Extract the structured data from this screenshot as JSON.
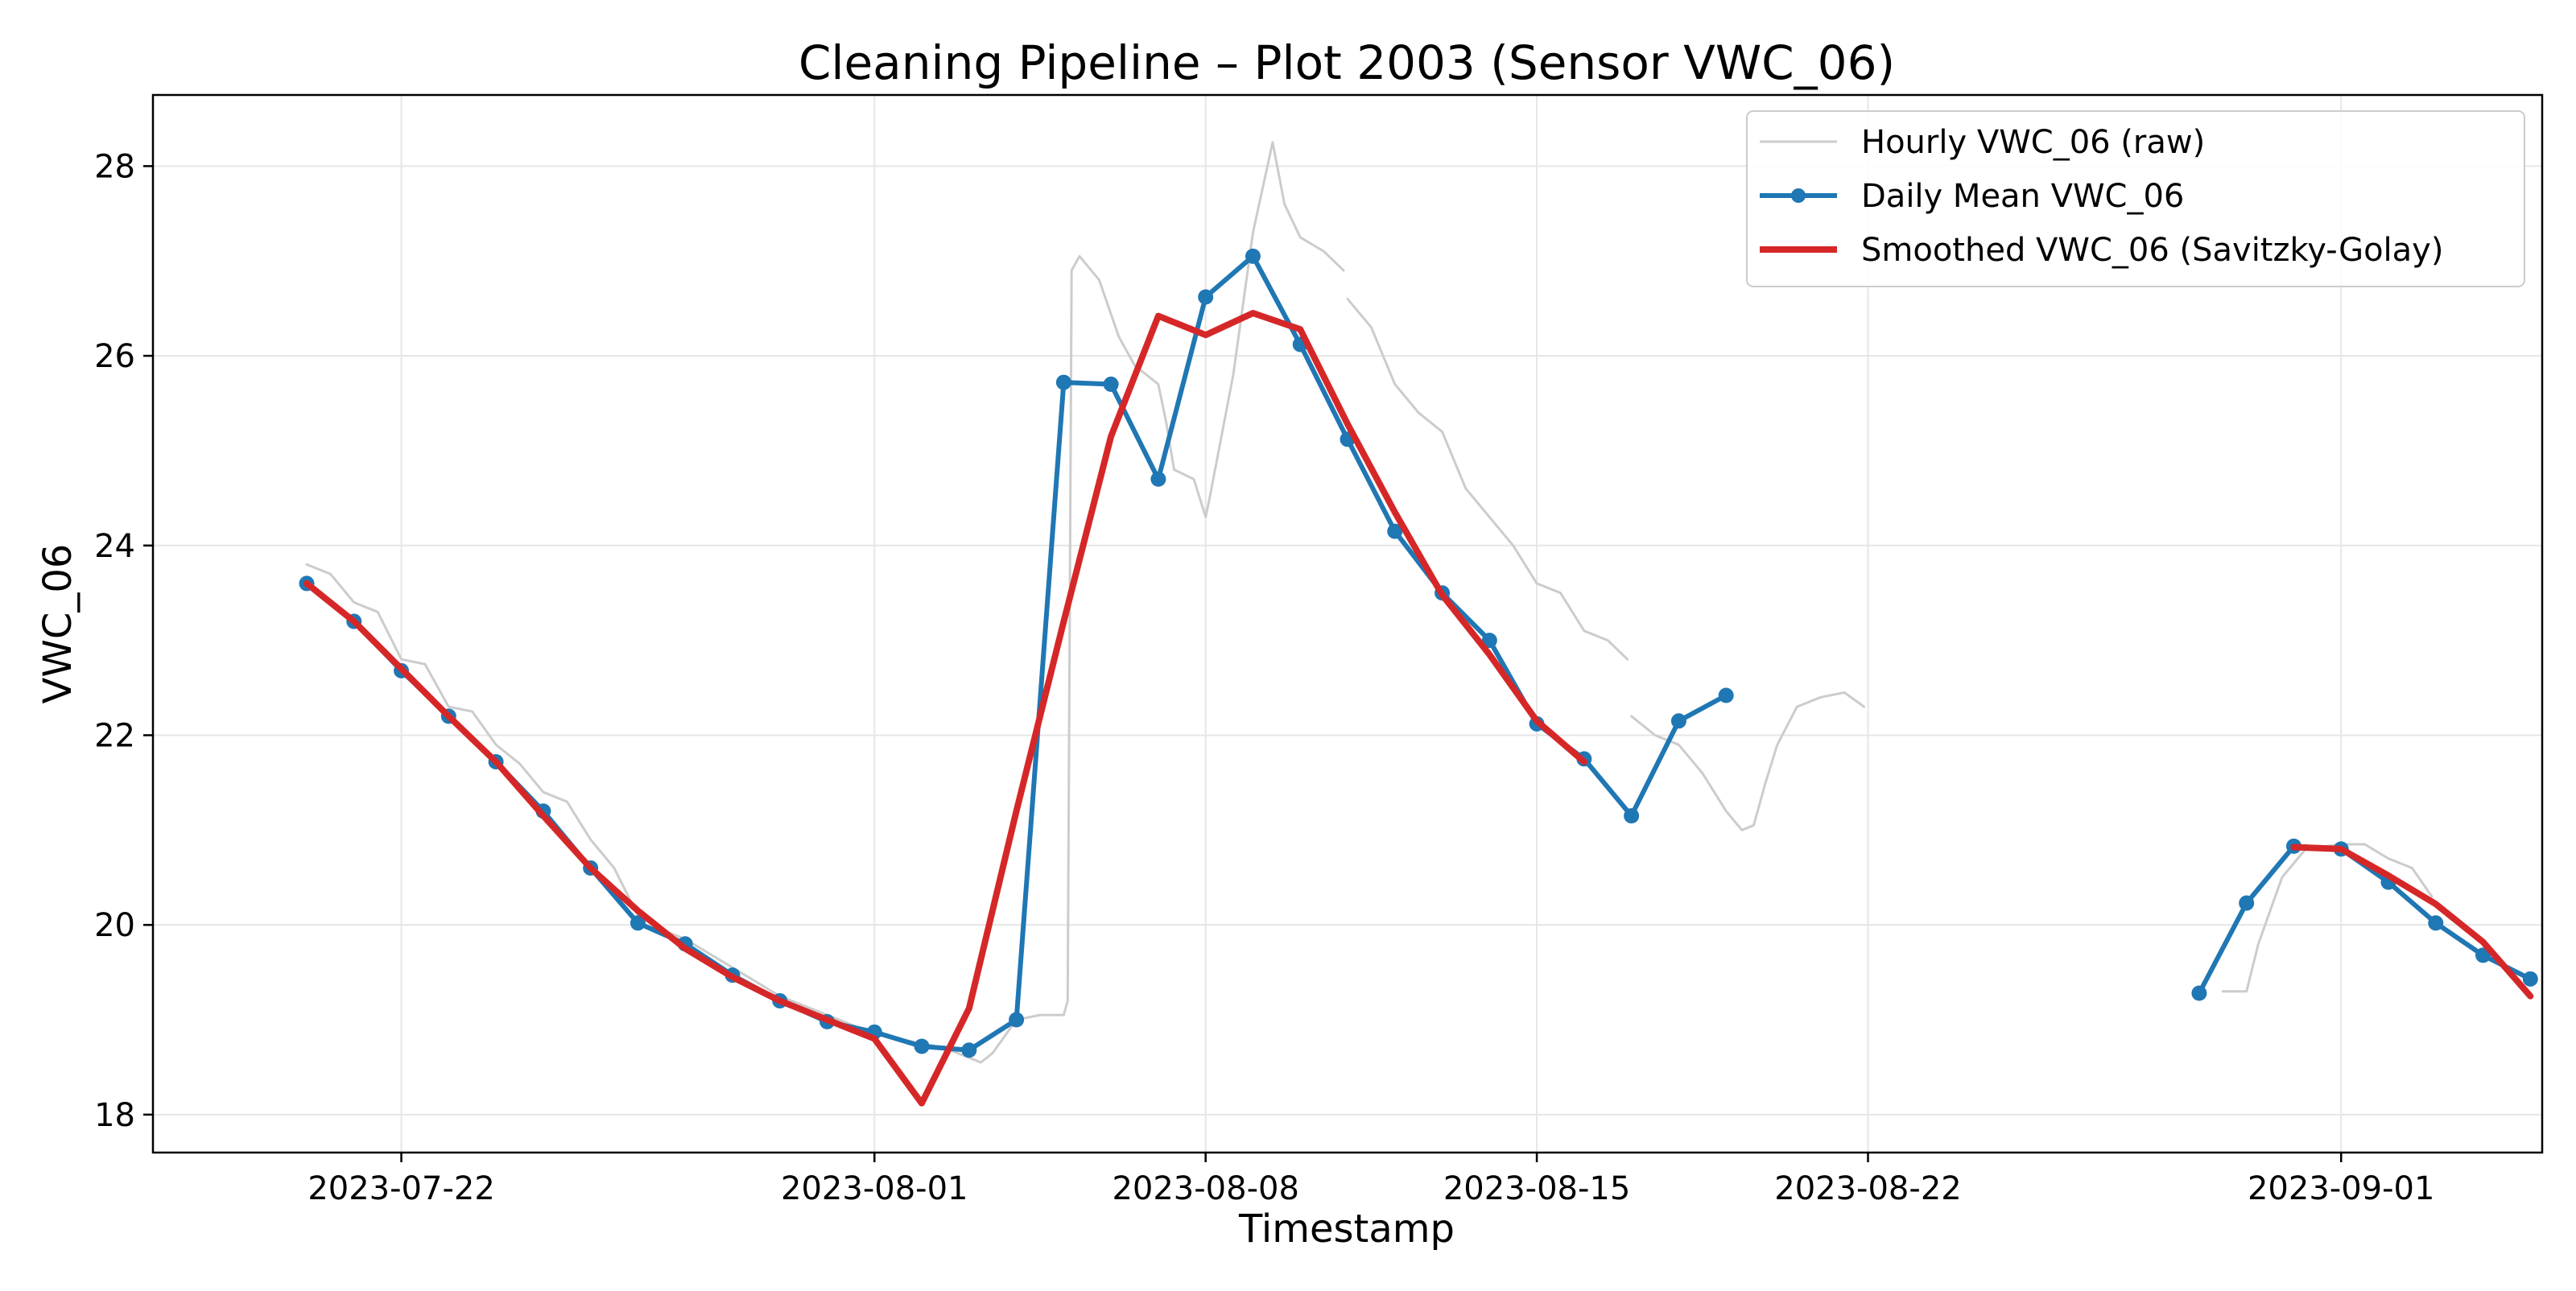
{
  "chart_data": {
    "type": "line",
    "title": "Cleaning Pipeline – Plot 2003 (Sensor VWC_06)",
    "xlabel": "Timestamp",
    "ylabel": "VWC_06",
    "xlim": [
      "2023-07-16T18:00",
      "2023-09-05T06:00"
    ],
    "ylim": [
      17.6,
      28.75
    ],
    "x_ticks": [
      "2023-07-22",
      "2023-08-01",
      "2023-08-08",
      "2023-08-15",
      "2023-08-22",
      "2023-09-01"
    ],
    "y_ticks": [
      18,
      20,
      22,
      24,
      26,
      28
    ],
    "grid": true,
    "legend_position": "top-right",
    "colors": {
      "raw": "#cccccc",
      "daily": "#1f77b4",
      "smoothed": "#d62728"
    },
    "series": [
      {
        "name": "Hourly VWC_06 (raw)",
        "style": "line",
        "segments": [
          [
            [
              "2023-07-20T00:00",
              23.8
            ],
            [
              "2023-07-20T12:00",
              23.7
            ],
            [
              "2023-07-21T00:00",
              23.4
            ],
            [
              "2023-07-21T12:00",
              23.3
            ],
            [
              "2023-07-22T00:00",
              22.8
            ],
            [
              "2023-07-22T12:00",
              22.75
            ],
            [
              "2023-07-23T00:00",
              22.3
            ],
            [
              "2023-07-23T12:00",
              22.25
            ],
            [
              "2023-07-24T00:00",
              21.9
            ],
            [
              "2023-07-24T12:00",
              21.7
            ],
            [
              "2023-07-25T00:00",
              21.4
            ],
            [
              "2023-07-25T12:00",
              21.3
            ],
            [
              "2023-07-26T00:00",
              20.9
            ],
            [
              "2023-07-26T12:00",
              20.6
            ],
            [
              "2023-07-27T00:00",
              20.1
            ],
            [
              "2023-07-27T12:00",
              19.95
            ],
            [
              "2023-07-28T00:00",
              19.85
            ],
            [
              "2023-07-28T12:00",
              19.7
            ],
            [
              "2023-07-29T00:00",
              19.55
            ],
            [
              "2023-07-29T12:00",
              19.4
            ],
            [
              "2023-07-30T00:00",
              19.25
            ],
            [
              "2023-07-30T12:00",
              19.15
            ],
            [
              "2023-07-31T00:00",
              19.05
            ],
            [
              "2023-07-31T12:00",
              18.95
            ],
            [
              "2023-08-01T00:00",
              18.85
            ],
            [
              "2023-08-01T12:00",
              18.8
            ],
            [
              "2023-08-02T00:00",
              18.75
            ],
            [
              "2023-08-02T12:00",
              18.7
            ],
            [
              "2023-08-03T00:00",
              18.6
            ],
            [
              "2023-08-03T06:00",
              18.55
            ],
            [
              "2023-08-03T12:00",
              18.65
            ],
            [
              "2023-08-04T00:00",
              19.0
            ],
            [
              "2023-08-04T12:00",
              19.05
            ],
            [
              "2023-08-05T00:00",
              19.05
            ],
            [
              "2023-08-05T02:00",
              19.2
            ],
            [
              "2023-08-05T04:00",
              26.9
            ],
            [
              "2023-08-05T08:00",
              27.05
            ],
            [
              "2023-08-05T18:00",
              26.8
            ],
            [
              "2023-08-06T04:00",
              26.2
            ],
            [
              "2023-08-06T12:00",
              25.9
            ],
            [
              "2023-08-07T00:00",
              25.7
            ],
            [
              "2023-08-07T04:00",
              25.3
            ],
            [
              "2023-08-07T08:00",
              24.8
            ],
            [
              "2023-08-07T18:00",
              24.7
            ],
            [
              "2023-08-08T00:00",
              24.3
            ],
            [
              "2023-08-08T02:00",
              24.5
            ],
            [
              "2023-08-08T14:00",
              25.8
            ],
            [
              "2023-08-09T00:00",
              27.3
            ],
            [
              "2023-08-09T10:00",
              28.25
            ],
            [
              "2023-08-09T16:00",
              27.6
            ],
            [
              "2023-08-10T00:00",
              27.25
            ],
            [
              "2023-08-10T12:00",
              27.1
            ],
            [
              "2023-08-10T22:00",
              26.9
            ]
          ],
          [
            [
              "2023-08-11T00:00",
              26.6
            ],
            [
              "2023-08-11T12:00",
              26.3
            ],
            [
              "2023-08-12T00:00",
              25.7
            ],
            [
              "2023-08-12T12:00",
              25.4
            ],
            [
              "2023-08-13T00:00",
              25.2
            ],
            [
              "2023-08-13T12:00",
              24.6
            ],
            [
              "2023-08-14T00:00",
              24.3
            ],
            [
              "2023-08-14T12:00",
              24.0
            ],
            [
              "2023-08-15T00:00",
              23.6
            ],
            [
              "2023-08-15T12:00",
              23.5
            ],
            [
              "2023-08-16T00:00",
              23.1
            ],
            [
              "2023-08-16T12:00",
              23.0
            ],
            [
              "2023-08-16T22:00",
              22.8
            ]
          ],
          [
            [
              "2023-08-17T00:00",
              22.2
            ],
            [
              "2023-08-17T12:00",
              22.0
            ],
            [
              "2023-08-18T00:00",
              21.9
            ],
            [
              "2023-08-18T12:00",
              21.6
            ],
            [
              "2023-08-19T00:00",
              21.2
            ],
            [
              "2023-08-19T08:00",
              21.0
            ],
            [
              "2023-08-19T14:00",
              21.05
            ],
            [
              "2023-08-19T20:00",
              21.5
            ],
            [
              "2023-08-20T02:00",
              21.9
            ],
            [
              "2023-08-20T12:00",
              22.3
            ],
            [
              "2023-08-21T00:00",
              22.4
            ],
            [
              "2023-08-21T12:00",
              22.45
            ],
            [
              "2023-08-21T22:00",
              22.3
            ]
          ],
          [
            [
              "2023-08-29T12:00",
              19.3
            ],
            [
              "2023-08-30T00:00",
              19.3
            ],
            [
              "2023-08-30T06:00",
              19.8
            ],
            [
              "2023-08-30T18:00",
              20.5
            ],
            [
              "2023-08-31T06:00",
              20.8
            ],
            [
              "2023-09-01T00:00",
              20.85
            ],
            [
              "2023-09-01T12:00",
              20.85
            ],
            [
              "2023-09-02T00:00",
              20.7
            ],
            [
              "2023-09-02T12:00",
              20.6
            ],
            [
              "2023-09-02T22:00",
              20.3
            ]
          ]
        ]
      },
      {
        "name": "Daily Mean VWC_06",
        "style": "line-marker",
        "segments": [
          [
            [
              "2023-07-20T00:00",
              23.6
            ],
            [
              "2023-07-21T00:00",
              23.2
            ],
            [
              "2023-07-22T00:00",
              22.68
            ],
            [
              "2023-07-23T00:00",
              22.2
            ],
            [
              "2023-07-24T00:00",
              21.72
            ],
            [
              "2023-07-25T00:00",
              21.2
            ],
            [
              "2023-07-26T00:00",
              20.6
            ],
            [
              "2023-07-27T00:00",
              20.02
            ],
            [
              "2023-07-28T00:00",
              19.8
            ],
            [
              "2023-07-29T00:00",
              19.47
            ],
            [
              "2023-07-30T00:00",
              19.2
            ],
            [
              "2023-07-31T00:00",
              18.98
            ],
            [
              "2023-08-01T00:00",
              18.87
            ],
            [
              "2023-08-02T00:00",
              18.72
            ],
            [
              "2023-08-03T00:00",
              18.68
            ],
            [
              "2023-08-04T00:00",
              19.0
            ],
            [
              "2023-08-05T00:00",
              25.72
            ],
            [
              "2023-08-06T00:00",
              25.7
            ],
            [
              "2023-08-07T00:00",
              24.7
            ],
            [
              "2023-08-08T00:00",
              26.62
            ],
            [
              "2023-08-09T00:00",
              27.05
            ],
            [
              "2023-08-10T00:00",
              26.12
            ],
            [
              "2023-08-11T00:00",
              25.12
            ],
            [
              "2023-08-12T00:00",
              24.15
            ],
            [
              "2023-08-13T00:00",
              23.5
            ],
            [
              "2023-08-14T00:00",
              23.0
            ],
            [
              "2023-08-15T00:00",
              22.12
            ],
            [
              "2023-08-16T00:00",
              21.75
            ],
            [
              "2023-08-17T00:00",
              21.15
            ],
            [
              "2023-08-18T00:00",
              22.15
            ],
            [
              "2023-08-19T00:00",
              22.42
            ]
          ],
          [
            [
              "2023-08-29T00:00",
              19.28
            ],
            [
              "2023-08-30T00:00",
              20.23
            ],
            [
              "2023-08-31T00:00",
              20.83
            ],
            [
              "2023-09-01T00:00",
              20.8
            ],
            [
              "2023-09-02T00:00",
              20.45
            ],
            [
              "2023-09-03T00:00",
              20.02
            ],
            [
              "2023-09-04T00:00",
              19.68
            ],
            [
              "2023-09-05T00:00",
              19.43
            ]
          ]
        ]
      },
      {
        "name": "Smoothed VWC_06 (Savitzky-Golay)",
        "style": "line",
        "segments": [
          [
            [
              "2023-07-20T00:00",
              23.6
            ],
            [
              "2023-07-21T00:00",
              23.2
            ],
            [
              "2023-07-22T00:00",
              22.7
            ],
            [
              "2023-07-23T00:00",
              22.2
            ],
            [
              "2023-07-24T00:00",
              21.72
            ],
            [
              "2023-07-25T00:00",
              21.15
            ],
            [
              "2023-07-26T00:00",
              20.6
            ],
            [
              "2023-07-27T00:00",
              20.15
            ],
            [
              "2023-07-28T00:00",
              19.75
            ],
            [
              "2023-07-29T00:00",
              19.45
            ],
            [
              "2023-07-30T00:00",
              19.2
            ],
            [
              "2023-07-31T00:00",
              19.0
            ],
            [
              "2023-08-01T00:00",
              18.8
            ],
            [
              "2023-08-02T00:00",
              18.12
            ],
            [
              "2023-08-03T00:00",
              19.12
            ],
            [
              "2023-08-04T00:00",
              21.2
            ],
            [
              "2023-08-05T00:00",
              23.2
            ],
            [
              "2023-08-06T00:00",
              25.15
            ],
            [
              "2023-08-07T00:00",
              26.42
            ],
            [
              "2023-08-08T00:00",
              26.22
            ],
            [
              "2023-08-09T00:00",
              26.45
            ],
            [
              "2023-08-10T00:00",
              26.28
            ],
            [
              "2023-08-11T00:00",
              25.28
            ],
            [
              "2023-08-12T00:00",
              24.35
            ],
            [
              "2023-08-13T00:00",
              23.48
            ],
            [
              "2023-08-14T00:00",
              22.85
            ],
            [
              "2023-08-15T00:00",
              22.15
            ],
            [
              "2023-08-16T00:00",
              21.72
            ]
          ],
          [
            [
              "2023-08-31T00:00",
              20.82
            ],
            [
              "2023-09-01T00:00",
              20.8
            ],
            [
              "2023-09-02T00:00",
              20.52
            ],
            [
              "2023-09-03T00:00",
              20.22
            ],
            [
              "2023-09-04T00:00",
              19.82
            ],
            [
              "2023-09-05T00:00",
              19.25
            ]
          ]
        ]
      }
    ]
  }
}
